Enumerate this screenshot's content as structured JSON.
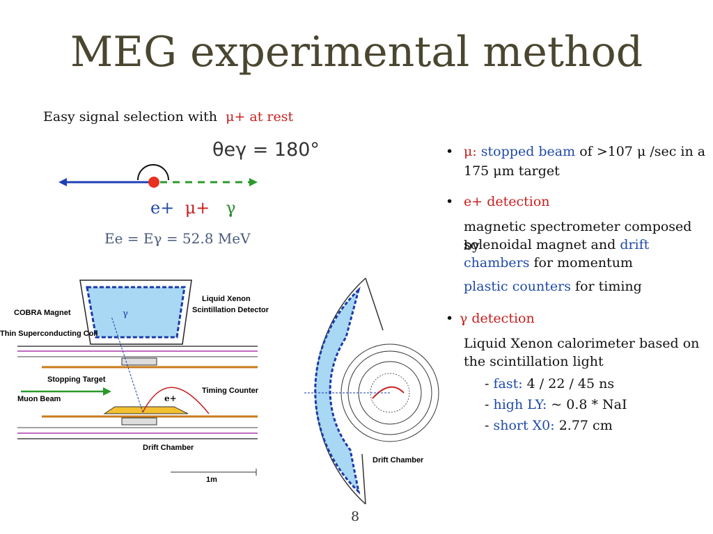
{
  "title": "MEG experimental method",
  "intro": {
    "text": "Easy signal selection with",
    "highlight": "μ+ at rest"
  },
  "angle": "θeγ = 180°",
  "particles": {
    "e": "e+",
    "mu": "μ+",
    "gamma": "γ"
  },
  "energy": "Ee = Eγ = 52.8 MeV",
  "bullets": {
    "mu": {
      "prefix": "μ:",
      "stopped": "stopped beam",
      "rest1": "of >107 μ /sec in a",
      "rest2": "175 μm target"
    },
    "e": {
      "head": "e+ detection",
      "line1": "magnetic spectrometer composed by",
      "line2a": "solenoidal magnet and",
      "line2b": "drift",
      "line3a": "chambers",
      "line3b": "for momentum",
      "line4a": "plastic counters",
      "line4b": "for timing"
    },
    "g": {
      "head": "γ detection",
      "line1": "Liquid Xenon calorimeter based on",
      "line2": "the scintillation light",
      "sub1a": "- ",
      "sub1b": "fast:",
      "sub1c": "  4 / 22 / 45 ns",
      "sub2b": "high LY:",
      "sub2c": " ~ 0.8 * NaI",
      "sub3b": "short X0:",
      "sub3c": " 2.77 cm"
    }
  },
  "diagram": {
    "cobra": "COBRA Magnet",
    "coil": "Thin Superconducting Coil",
    "stopping": "Stopping Target",
    "muon": "Muon Beam",
    "lxe1": "Liquid Xenon",
    "lxe2": "Scintillation Detector",
    "timing": "Timing Counter",
    "drift1": "Drift Chamber",
    "drift2": "Drift Chamber",
    "scale": "1m",
    "gamma": "γ",
    "eplus": "e+"
  },
  "page_number": "8"
}
